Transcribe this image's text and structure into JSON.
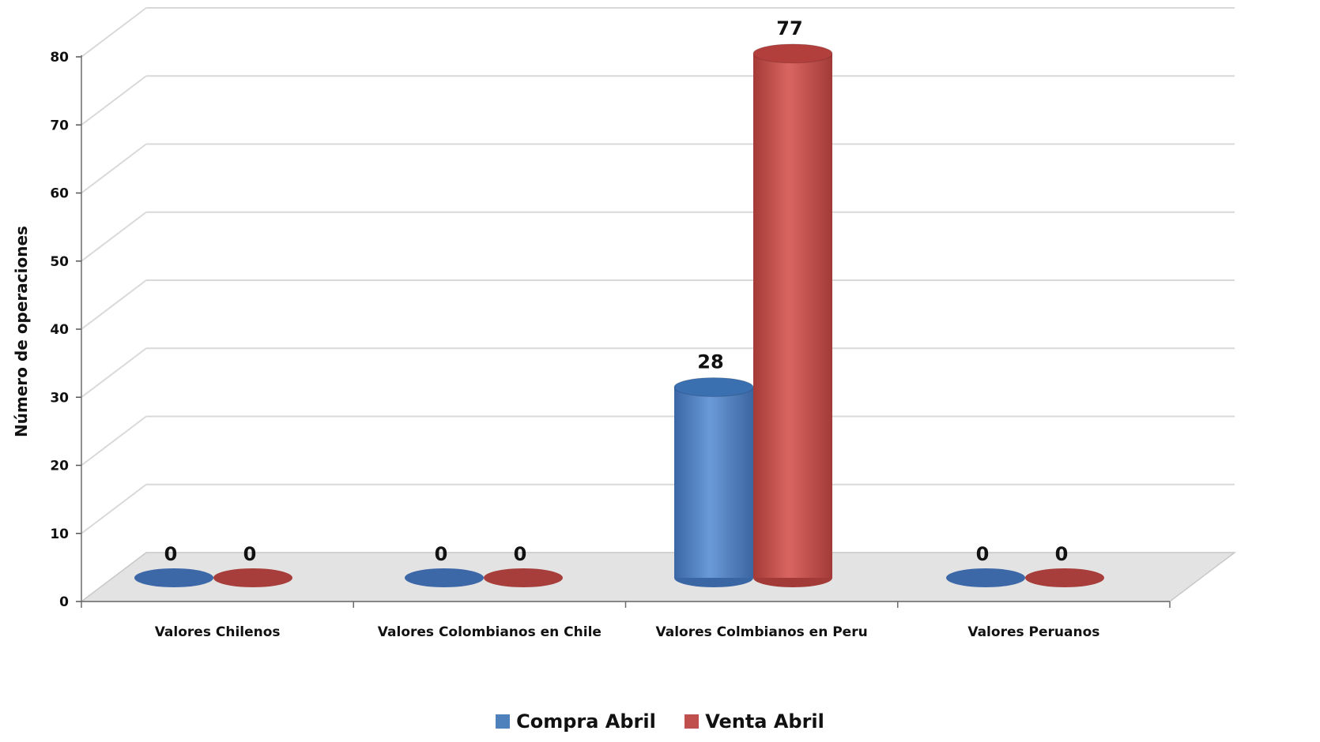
{
  "chart_data": {
    "type": "bar",
    "style": "3d-cylinder",
    "categories": [
      "Valores Chilenos",
      "Valores Colombianos en Chile",
      "Valores Colmbianos en Peru",
      "Valores Peruanos"
    ],
    "series": [
      {
        "name": "Compra Abril",
        "values": [
          0,
          0,
          28,
          0
        ],
        "color": "#4f81bd"
      },
      {
        "name": "Venta Abril",
        "values": [
          0,
          0,
          77,
          0
        ],
        "color": "#c0504d"
      }
    ],
    "ylabel": "Número de operaciones",
    "xlabel": "",
    "ylim": [
      0,
      80
    ],
    "yticks": [
      0,
      10,
      20,
      30,
      40,
      50,
      60,
      70,
      80
    ],
    "grid": true,
    "legend": "bottom"
  }
}
